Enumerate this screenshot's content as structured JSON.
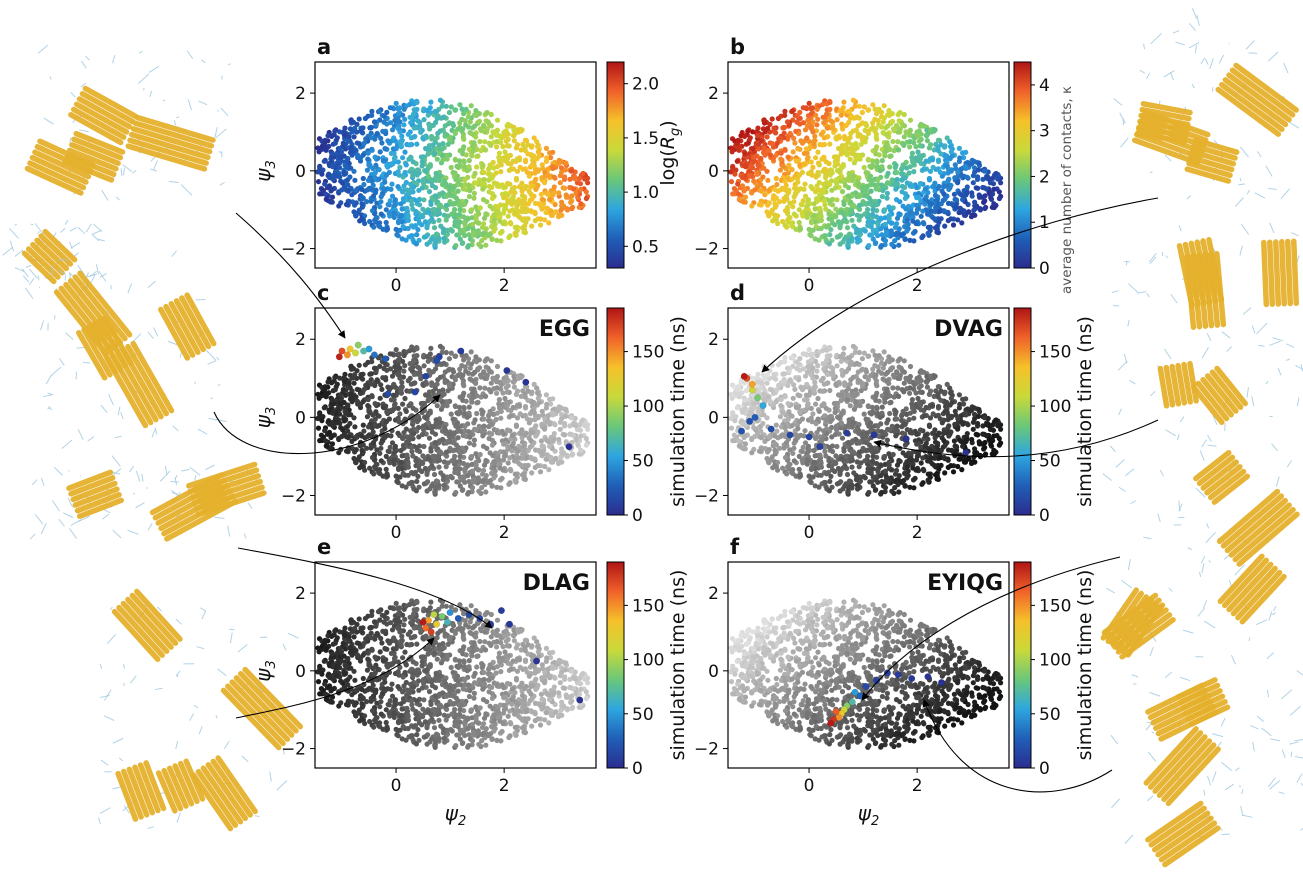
{
  "figure": {
    "axis_label_x": "ψ",
    "axis_label_x_sub": "2",
    "axis_label_y": "ψ",
    "axis_label_y_sub": "3"
  },
  "colors": {
    "viridis_stops": [
      "#2b2d8f",
      "#1f5fb8",
      "#2ea6e0",
      "#6ac77a",
      "#c9d93a",
      "#f6c12a",
      "#f0622a",
      "#b01515"
    ],
    "gray_light": "#e0e0e0",
    "gray_dark": "#111111",
    "molecule_backbone": "#e5b12c",
    "molecule_sidechain": "#9fc7e0"
  },
  "chart_data": [
    {
      "panel": "a",
      "type": "scatter",
      "title": "",
      "color_mode": "rainbow",
      "xlim": [
        -1.5,
        3.7
      ],
      "ylim": [
        -2.5,
        2.8
      ],
      "xticks": [
        0,
        2
      ],
      "yticks": [
        -2,
        0,
        2
      ],
      "colorbar": {
        "label": "log(R_g)",
        "label_text": "log(",
        "label_sym": "R",
        "label_sub": "g",
        "label_close": ")",
        "range": [
          0.3,
          2.2
        ],
        "ticks": [
          0.5,
          1.0,
          1.5,
          2.0
        ],
        "tick_labels": [
          "0.5",
          "1.0",
          "1.5",
          "2.0"
        ]
      },
      "trajectory": []
    },
    {
      "panel": "b",
      "type": "scatter",
      "title": "",
      "color_mode": "rainbow",
      "xlim": [
        -1.5,
        3.7
      ],
      "ylim": [
        -2.5,
        2.8
      ],
      "xticks": [
        0,
        2
      ],
      "yticks": [
        -2,
        0,
        2
      ],
      "colorbar": {
        "label": "average number of contacts, κ",
        "range": [
          0,
          4.5
        ],
        "ticks": [
          0,
          1,
          2,
          3,
          4
        ],
        "tick_labels": [
          "0",
          "1",
          "2",
          "3",
          "4"
        ]
      },
      "trajectory": []
    },
    {
      "panel": "c",
      "type": "scatter",
      "title": "EGG",
      "color_mode": "gray",
      "xlim": [
        -1.5,
        3.7
      ],
      "ylim": [
        -2.5,
        2.8
      ],
      "xticks": [
        0,
        2
      ],
      "yticks": [
        -2,
        0,
        2
      ],
      "colorbar": {
        "label": "simulation time (ns)",
        "range": [
          0,
          190
        ],
        "ticks": [
          0,
          50,
          100,
          150
        ],
        "tick_labels": [
          "0",
          "50",
          "100",
          "150"
        ]
      },
      "trajectory": [
        {
          "x": 3.2,
          "y": -0.75,
          "t": 2
        },
        {
          "x": 2.4,
          "y": 0.9,
          "t": 4
        },
        {
          "x": 2.05,
          "y": 1.2,
          "t": 6
        },
        {
          "x": 1.2,
          "y": 1.7,
          "t": 8
        },
        {
          "x": 0.8,
          "y": 1.55,
          "t": 10
        },
        {
          "x": 0.55,
          "y": 1.05,
          "t": 12
        },
        {
          "x": 0.35,
          "y": 0.65,
          "t": 14
        },
        {
          "x": -0.15,
          "y": 0.6,
          "t": 16
        },
        {
          "x": 0.75,
          "y": 1.45,
          "t": 18
        },
        {
          "x": -0.2,
          "y": 1.5,
          "t": 25
        },
        {
          "x": -0.4,
          "y": 1.6,
          "t": 35
        },
        {
          "x": -0.5,
          "y": 1.75,
          "t": 50
        },
        {
          "x": -0.6,
          "y": 1.7,
          "t": 70
        },
        {
          "x": -0.7,
          "y": 1.85,
          "t": 90
        },
        {
          "x": -0.75,
          "y": 1.65,
          "t": 110
        },
        {
          "x": -0.85,
          "y": 1.75,
          "t": 130
        },
        {
          "x": -0.9,
          "y": 1.6,
          "t": 150
        },
        {
          "x": -1.0,
          "y": 1.7,
          "t": 170
        },
        {
          "x": -1.05,
          "y": 1.55,
          "t": 185
        }
      ]
    },
    {
      "panel": "d",
      "type": "scatter",
      "title": "DVAG",
      "color_mode": "gray_reverse",
      "xlim": [
        -1.5,
        3.7
      ],
      "ylim": [
        -2.5,
        2.8
      ],
      "xticks": [
        0,
        2
      ],
      "yticks": [
        -2,
        0,
        2
      ],
      "colorbar": {
        "label": "simulation time (ns)",
        "range": [
          0,
          190
        ],
        "ticks": [
          0,
          50,
          100,
          150
        ],
        "tick_labels": [
          "0",
          "50",
          "100",
          "150"
        ]
      },
      "trajectory": [
        {
          "x": 2.9,
          "y": -0.9,
          "t": 2
        },
        {
          "x": 1.8,
          "y": -0.55,
          "t": 4
        },
        {
          "x": 1.2,
          "y": -0.45,
          "t": 6
        },
        {
          "x": 0.7,
          "y": -0.4,
          "t": 8
        },
        {
          "x": 0.2,
          "y": -0.75,
          "t": 10
        },
        {
          "x": 0.0,
          "y": -0.5,
          "t": 12
        },
        {
          "x": -0.35,
          "y": -0.45,
          "t": 14
        },
        {
          "x": -0.7,
          "y": -0.3,
          "t": 16
        },
        {
          "x": -1.1,
          "y": -0.1,
          "t": 18
        },
        {
          "x": -1.25,
          "y": -0.35,
          "t": 20
        },
        {
          "x": -1.0,
          "y": 0.0,
          "t": 25
        },
        {
          "x": -0.85,
          "y": 0.3,
          "t": 55
        },
        {
          "x": -0.95,
          "y": 0.5,
          "t": 85
        },
        {
          "x": -1.05,
          "y": 0.7,
          "t": 115
        },
        {
          "x": -1.05,
          "y": 0.85,
          "t": 145
        },
        {
          "x": -1.15,
          "y": 1.0,
          "t": 170
        },
        {
          "x": -1.2,
          "y": 1.05,
          "t": 188
        }
      ]
    },
    {
      "panel": "e",
      "type": "scatter",
      "title": "DLAG",
      "color_mode": "gray",
      "xlim": [
        -1.5,
        3.7
      ],
      "ylim": [
        -2.5,
        2.8
      ],
      "xticks": [
        0,
        2
      ],
      "yticks": [
        -2,
        0,
        2
      ],
      "colorbar": {
        "label": "simulation time (ns)",
        "range": [
          0,
          190
        ],
        "ticks": [
          0,
          50,
          100,
          150
        ],
        "tick_labels": [
          "0",
          "50",
          "100",
          "150"
        ]
      },
      "trajectory": [
        {
          "x": 3.4,
          "y": -0.75,
          "t": 2
        },
        {
          "x": 2.6,
          "y": 0.25,
          "t": 4
        },
        {
          "x": 2.1,
          "y": 1.2,
          "t": 6
        },
        {
          "x": 1.95,
          "y": 1.55,
          "t": 8
        },
        {
          "x": 1.75,
          "y": 1.2,
          "t": 10
        },
        {
          "x": 1.55,
          "y": 1.35,
          "t": 12
        },
        {
          "x": 1.35,
          "y": 1.45,
          "t": 15
        },
        {
          "x": 1.15,
          "y": 1.35,
          "t": 25
        },
        {
          "x": 1.0,
          "y": 1.5,
          "t": 45
        },
        {
          "x": 0.95,
          "y": 1.25,
          "t": 65
        },
        {
          "x": 0.85,
          "y": 1.4,
          "t": 85
        },
        {
          "x": 0.7,
          "y": 1.45,
          "t": 105
        },
        {
          "x": 0.75,
          "y": 1.2,
          "t": 125
        },
        {
          "x": 0.6,
          "y": 1.3,
          "t": 145
        },
        {
          "x": 0.55,
          "y": 1.1,
          "t": 160
        },
        {
          "x": 0.65,
          "y": 1.0,
          "t": 175
        },
        {
          "x": 0.5,
          "y": 1.25,
          "t": 188
        }
      ]
    },
    {
      "panel": "f",
      "type": "scatter",
      "title": "EYIQG",
      "color_mode": "gray_reverse",
      "xlim": [
        -1.5,
        3.7
      ],
      "ylim": [
        -2.5,
        2.8
      ],
      "xticks": [
        0,
        2
      ],
      "yticks": [
        -2,
        0,
        2
      ],
      "colorbar": {
        "label": "simulation time (ns)",
        "range": [
          0,
          190
        ],
        "ticks": [
          0,
          50,
          100,
          150
        ],
        "tick_labels": [
          "0",
          "50",
          "100",
          "150"
        ]
      },
      "trajectory": [
        {
          "x": 2.45,
          "y": -0.3,
          "t": 2
        },
        {
          "x": 2.2,
          "y": -0.15,
          "t": 4
        },
        {
          "x": 1.9,
          "y": -0.2,
          "t": 6
        },
        {
          "x": 1.65,
          "y": -0.1,
          "t": 8
        },
        {
          "x": 1.45,
          "y": -0.05,
          "t": 10
        },
        {
          "x": 1.25,
          "y": -0.25,
          "t": 12
        },
        {
          "x": 1.05,
          "y": -0.4,
          "t": 15
        },
        {
          "x": 0.95,
          "y": -0.65,
          "t": 30
        },
        {
          "x": 0.85,
          "y": -0.55,
          "t": 50
        },
        {
          "x": 0.8,
          "y": -0.8,
          "t": 70
        },
        {
          "x": 0.7,
          "y": -0.9,
          "t": 90
        },
        {
          "x": 0.65,
          "y": -1.0,
          "t": 110
        },
        {
          "x": 0.6,
          "y": -1.1,
          "t": 130
        },
        {
          "x": 0.55,
          "y": -1.2,
          "t": 150
        },
        {
          "x": 0.5,
          "y": -1.05,
          "t": 165
        },
        {
          "x": 0.45,
          "y": -1.25,
          "t": 178
        },
        {
          "x": 0.4,
          "y": -1.35,
          "t": 188
        }
      ]
    }
  ]
}
